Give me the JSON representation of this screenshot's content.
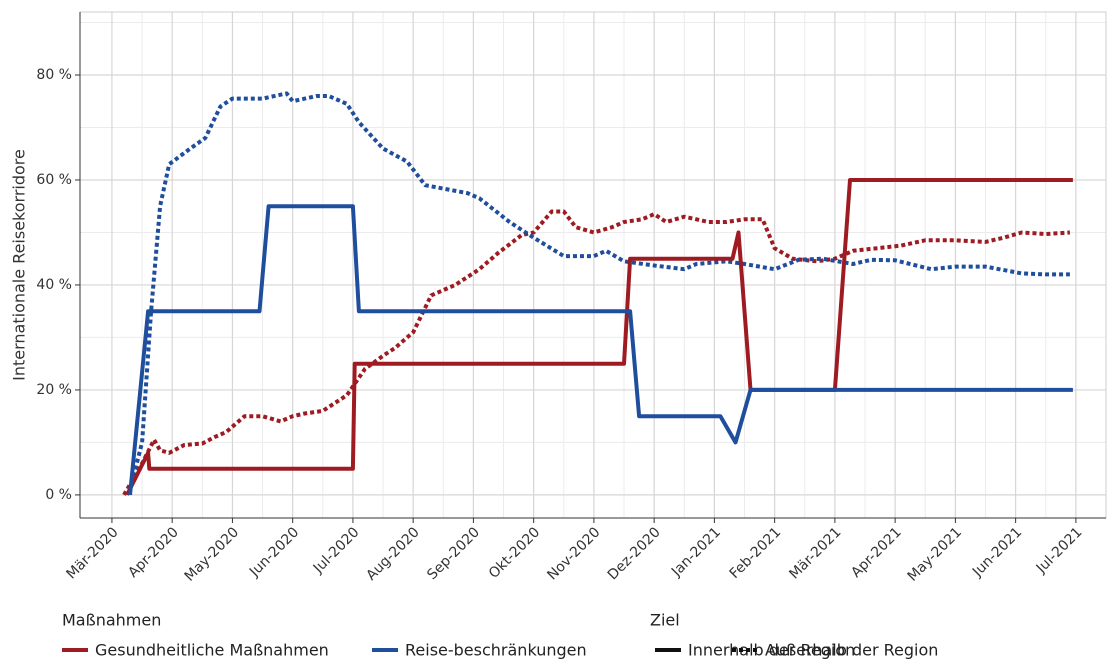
{
  "chart_data": {
    "type": "line",
    "y_label": "Internationale Reisekorridore",
    "xlim": [
      -0.53,
      16.5
    ],
    "xticks": [
      {
        "value": 0,
        "label": "Mär-2020"
      },
      {
        "value": 1,
        "label": "Apr-2020"
      },
      {
        "value": 2,
        "label": "May-2020"
      },
      {
        "value": 3,
        "label": "Jun-2020"
      },
      {
        "value": 4,
        "label": "Jul-2020"
      },
      {
        "value": 5,
        "label": "Aug-2020"
      },
      {
        "value": 6,
        "label": "Sep-2020"
      },
      {
        "value": 7,
        "label": "Okt-2020"
      },
      {
        "value": 8,
        "label": "Nov-2020"
      },
      {
        "value": 9,
        "label": "Dez-2020"
      },
      {
        "value": 10,
        "label": "Jan-2021"
      },
      {
        "value": 11,
        "label": "Feb-2021"
      },
      {
        "value": 12,
        "label": "Mär-2021"
      },
      {
        "value": 13,
        "label": "Apr-2021"
      },
      {
        "value": 14,
        "label": "May-2021"
      },
      {
        "value": 15,
        "label": "Jun-2021"
      },
      {
        "value": 16,
        "label": "Jul-2021"
      }
    ],
    "minor_xticks": [
      0.5,
      1.5,
      2.5,
      3.5,
      4.5,
      5.5,
      6.5,
      7.5,
      8.5,
      9.5,
      10.5,
      11.5,
      12.5,
      13.5,
      14.5,
      15.5
    ],
    "ylim": [
      -4.4,
      92
    ],
    "yticks": [
      {
        "value": 0,
        "label": "0 %"
      },
      {
        "value": 20,
        "label": "20 %"
      },
      {
        "value": 40,
        "label": "40 %"
      },
      {
        "value": 60,
        "label": "60 %"
      },
      {
        "value": 80,
        "label": "80 %"
      }
    ],
    "minor_yticks": [
      10,
      30,
      50,
      70,
      90
    ],
    "grid": true,
    "legends": [
      {
        "title": "Maßnahmen",
        "entries": [
          {
            "label": "Gesundheitliche Maßnahmen",
            "color": "#9e1b22"
          },
          {
            "label": "Reise-beschränkungen",
            "color": "#1f4e9c"
          }
        ]
      },
      {
        "title": "Ziel",
        "entries": [
          {
            "label": "Innerhalb der Region",
            "dash": "solid"
          },
          {
            "label": "Außerhalb der Region",
            "dash": "dotted"
          }
        ]
      }
    ],
    "series": [
      {
        "measure": 0,
        "target": 1,
        "color": "#9e1b22",
        "dash": "dotted",
        "x": [
          0.2,
          0.4,
          0.5,
          0.7,
          0.8,
          0.95,
          1.2,
          1.5,
          1.7,
          1.9,
          2.2,
          2.5,
          2.8,
          3.0,
          3.2,
          3.5,
          3.9,
          4.2,
          4.5,
          4.7,
          5.0,
          5.3,
          5.7,
          6.1,
          6.4,
          6.8,
          7.0,
          7.3,
          7.5,
          7.7,
          8.0,
          8.3,
          8.5,
          8.8,
          9.0,
          9.2,
          9.5,
          9.9,
          10.2,
          10.5,
          10.8,
          11.0,
          11.3,
          11.7,
          12.0,
          12.3,
          12.7,
          13.1,
          13.5,
          14.0,
          14.5,
          14.8,
          15.1,
          15.5,
          15.9
        ],
        "values": [
          0,
          4,
          6,
          10.5,
          8.5,
          8,
          9.5,
          9.8,
          11,
          12,
          15,
          15,
          14,
          15,
          15.5,
          16,
          19,
          24,
          26.5,
          28,
          31,
          38,
          40,
          43,
          46,
          49.5,
          50,
          54,
          54,
          51,
          50,
          51,
          52,
          52.5,
          53.5,
          52,
          53,
          52,
          52,
          52.5,
          52.5,
          47,
          45,
          44.5,
          45,
          46.5,
          47,
          47.5,
          48.5,
          48.5,
          48.2,
          49,
          50,
          49.7,
          50
        ]
      },
      {
        "measure": 1,
        "target": 1,
        "color": "#1f4e9c",
        "dash": "dotted",
        "x": [
          0.3,
          0.5,
          0.65,
          0.8,
          0.95,
          1.3,
          1.55,
          1.8,
          2.0,
          2.5,
          2.9,
          3.0,
          3.4,
          3.6,
          3.9,
          4.1,
          4.5,
          4.9,
          5.2,
          5.9,
          6.1,
          6.6,
          7.0,
          7.5,
          8.0,
          8.2,
          8.5,
          9.0,
          9.5,
          9.7,
          10.2,
          10.5,
          11.0,
          11.4,
          11.8,
          12.3,
          12.6,
          13.0,
          13.6,
          14.0,
          14.5,
          15.1,
          15.5,
          15.9
        ],
        "values": [
          1,
          10,
          35,
          55,
          63,
          66,
          68,
          74,
          75.5,
          75.5,
          76.5,
          75,
          76,
          76,
          74.5,
          71,
          66,
          63.5,
          59,
          57.5,
          56.5,
          52,
          49,
          45.5,
          45.5,
          46.5,
          44.5,
          43.7,
          43,
          44,
          44.5,
          44,
          43,
          44.8,
          45,
          44,
          44.8,
          44.7,
          43,
          43.5,
          43.5,
          42.2,
          42,
          42
        ]
      },
      {
        "measure": 0,
        "target": 0,
        "color": "#9e1b22",
        "dash": "solid",
        "x": [
          0.25,
          0.6,
          0.62,
          4.0,
          4.03,
          8.5,
          8.6,
          10.3,
          10.4,
          10.6,
          12.0,
          12.25,
          15.95
        ],
        "values": [
          0,
          8,
          5,
          5,
          25,
          25,
          45,
          45,
          50,
          20,
          20,
          60,
          60
        ]
      },
      {
        "measure": 1,
        "target": 0,
        "color": "#1f4e9c",
        "dash": "solid",
        "x": [
          0.3,
          0.6,
          2.45,
          2.6,
          4.0,
          4.1,
          8.6,
          8.75,
          10.1,
          10.35,
          10.6,
          15.95
        ],
        "values": [
          0,
          35,
          35,
          55,
          55,
          35,
          35,
          15,
          15,
          10,
          20,
          20
        ]
      }
    ]
  }
}
